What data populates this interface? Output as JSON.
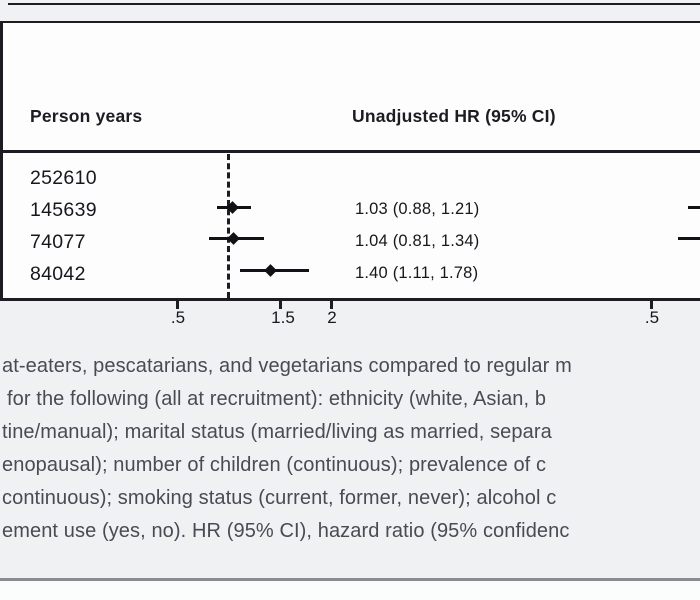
{
  "figure": {
    "header": {
      "person_years": "Person years",
      "unadjusted_hr": "Unadjusted HR (95% CI)"
    },
    "rows": [
      {
        "person_years": "252610",
        "hr_text": ""
      },
      {
        "person_years": "145639",
        "hr_text": "1.03 (0.88, 1.21)"
      },
      {
        "person_years": "74077",
        "hr_text": "1.04 (0.81, 1.34)"
      },
      {
        "person_years": "84042",
        "hr_text": "1.40 (1.11, 1.78)"
      }
    ],
    "axis": {
      "tick_labels": [
        ".5",
        "1.5",
        "2"
      ],
      "right_panel_tick_label": ".5"
    }
  },
  "caption": {
    "lines": [
      "at-eaters, pescatarians, and vegetarians compared to regular m",
      "for the following (all at recruitment): ethnicity (white, Asian, b",
      "tine/manual); marital status (married/living as married, separa",
      "enopausal); number of children (continuous); prevalence of c",
      "continuous); smoking status (current, former, never); alcohol c",
      "ement use (yes, no). HR (95% CI), hazard ratio (95% confidenc"
    ]
  },
  "colors": {
    "ink": "#1c1c22",
    "caption_text": "#4a4a55",
    "page_bg": "#eff1f2",
    "plot_bg": "#fdfdfe",
    "bottom_rule": "#8a8a8f"
  },
  "chart_data": {
    "type": "scatter",
    "subtype": "forest-plot",
    "columns": [
      "Person years",
      "Unadjusted HR (95% CI)"
    ],
    "x_axis": {
      "scale": "linear",
      "visible_ticks": [
        0.5,
        1.5,
        2
      ],
      "reference_line": 1.0
    },
    "rows": [
      {
        "person_years": 252610,
        "hr": null,
        "ci": null
      },
      {
        "person_years": 145639,
        "hr": 1.03,
        "ci": [
          0.88,
          1.21
        ]
      },
      {
        "person_years": 74077,
        "hr": 1.04,
        "ci": [
          0.81,
          1.34
        ]
      },
      {
        "person_years": 84042,
        "hr": 1.4,
        "ci": [
          1.11,
          1.78
        ]
      }
    ],
    "right_panel": {
      "visible_tick": 0.5,
      "cut_off_at_right_edge": true
    }
  }
}
